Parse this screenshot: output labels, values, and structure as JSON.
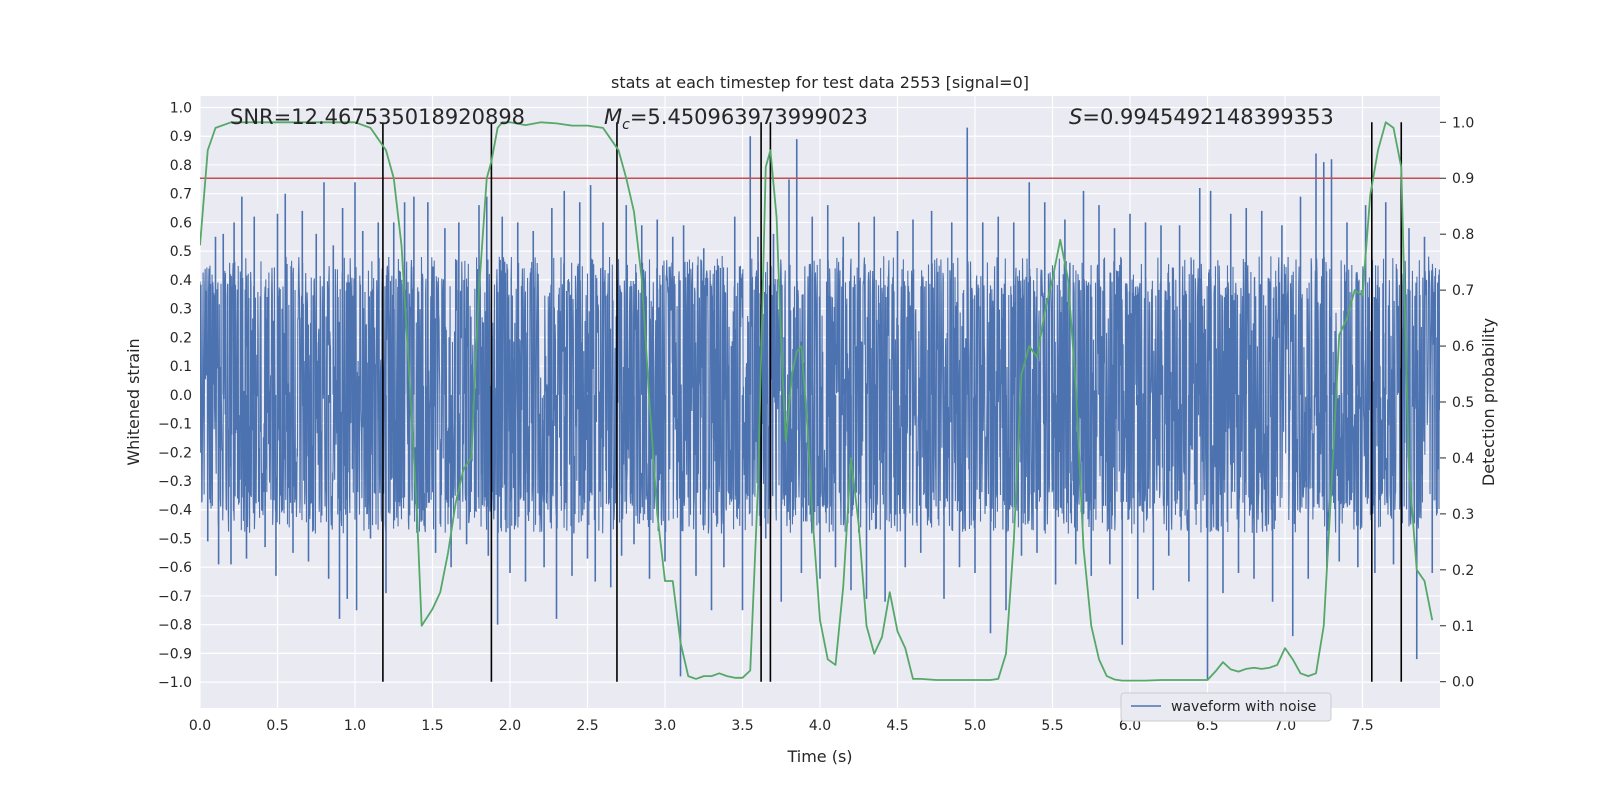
{
  "chart_data": {
    "type": "line",
    "title": "stats at each timestep for test data 2553 [signal=0]",
    "xlabel": "Time (s)",
    "ylabel": "Whitened strain",
    "y2label": "Detection probability",
    "xlim": [
      0.0,
      8.0
    ],
    "ylim": [
      -1.09,
      1.04
    ],
    "y2lim": [
      -0.047,
      1.047
    ],
    "x_ticks": [
      "0.0",
      "0.5",
      "1.0",
      "1.5",
      "2.0",
      "2.5",
      "3.0",
      "3.5",
      "4.0",
      "4.5",
      "5.0",
      "5.5",
      "6.0",
      "6.5",
      "7.0",
      "7.5"
    ],
    "y_ticks": [
      "1.0",
      "0.9",
      "0.8",
      "0.7",
      "0.6",
      "0.5",
      "0.4",
      "0.3",
      "0.2",
      "0.1",
      "0.0",
      "−0.1",
      "−0.2",
      "−0.3",
      "−0.4",
      "−0.5",
      "−0.6",
      "−0.7",
      "−0.8",
      "−0.9",
      "−1.0"
    ],
    "y2_ticks": [
      "1.0",
      "0.9",
      "0.8",
      "0.7",
      "0.6",
      "0.5",
      "0.4",
      "0.3",
      "0.2",
      "0.1",
      "0.0"
    ],
    "grid": true,
    "legend": {
      "placement": "lower-right",
      "entries": [
        "waveform with noise"
      ]
    },
    "annotations": {
      "snr": "SNR=12.467535018920898",
      "mc_symbol": "M",
      "mc_sub": "c",
      "mc_value": "=5.450963973999023",
      "s_symbol": "S",
      "s_value": "=0.9945492148399353"
    },
    "threshold": {
      "value": 0.9,
      "axis": "detection probability",
      "color": "#c44e52"
    },
    "vertical_markers": [
      1.18,
      1.88,
      2.69,
      3.62,
      3.68,
      7.56,
      7.75
    ],
    "series": [
      {
        "name": "waveform with noise",
        "kind": "noise",
        "color": "#4c72b0",
        "typical_range": [
          -0.42,
          0.42
        ],
        "spikes": [
          [
            0.05,
            -0.51
          ],
          [
            0.1,
            0.55
          ],
          [
            0.12,
            -0.59
          ],
          [
            0.15,
            0.56
          ],
          [
            0.2,
            -0.59
          ],
          [
            0.22,
            0.6
          ],
          [
            0.27,
            0.69
          ],
          [
            0.3,
            -0.57
          ],
          [
            0.35,
            0.62
          ],
          [
            0.42,
            -0.53
          ],
          [
            0.49,
            -0.63
          ],
          [
            0.5,
            0.63
          ],
          [
            0.55,
            0.7
          ],
          [
            0.6,
            -0.55
          ],
          [
            0.66,
            0.64
          ],
          [
            0.7,
            -0.58
          ],
          [
            0.75,
            0.56
          ],
          [
            0.8,
            0.74
          ],
          [
            0.83,
            -0.64
          ],
          [
            0.86,
            0.52
          ],
          [
            0.9,
            -0.78
          ],
          [
            0.92,
            0.65
          ],
          [
            0.95,
            -0.71
          ],
          [
            1.0,
            0.74
          ],
          [
            1.01,
            -0.75
          ],
          [
            1.05,
            0.57
          ],
          [
            1.1,
            -0.5
          ],
          [
            1.15,
            0.6
          ],
          [
            1.2,
            -0.69
          ],
          [
            1.25,
            0.6
          ],
          [
            1.32,
            0.67
          ],
          [
            1.38,
            0.69
          ],
          [
            1.4,
            -0.48
          ],
          [
            1.47,
            0.67
          ],
          [
            1.52,
            -0.55
          ],
          [
            1.58,
            0.58
          ],
          [
            1.62,
            -0.6
          ],
          [
            1.67,
            0.6
          ],
          [
            1.72,
            -0.52
          ],
          [
            1.8,
            0.66
          ],
          [
            1.85,
            0.69
          ],
          [
            1.86,
            -0.56
          ],
          [
            1.92,
            -0.8
          ],
          [
            1.95,
            0.62
          ],
          [
            2.0,
            -0.62
          ],
          [
            2.05,
            0.6
          ],
          [
            2.1,
            -0.65
          ],
          [
            2.15,
            0.57
          ],
          [
            2.22,
            -0.6
          ],
          [
            2.27,
            0.65
          ],
          [
            2.3,
            -0.78
          ],
          [
            2.35,
            0.71
          ],
          [
            2.4,
            -0.63
          ],
          [
            2.45,
            0.67
          ],
          [
            2.5,
            -0.57
          ],
          [
            2.52,
            0.73
          ],
          [
            2.55,
            -0.65
          ],
          [
            2.6,
            0.6
          ],
          [
            2.65,
            -0.67
          ],
          [
            2.72,
            -0.56
          ],
          [
            2.75,
            0.66
          ],
          [
            2.8,
            -0.52
          ],
          [
            2.85,
            0.59
          ],
          [
            2.9,
            -0.64
          ],
          [
            2.95,
            0.61
          ],
          [
            3.0,
            -0.58
          ],
          [
            3.05,
            0.55
          ],
          [
            3.1,
            -0.98
          ],
          [
            3.12,
            0.59
          ],
          [
            3.2,
            -0.63
          ],
          [
            3.25,
            0.51
          ],
          [
            3.3,
            -0.75
          ],
          [
            3.38,
            -0.6
          ],
          [
            3.45,
            0.62
          ],
          [
            3.5,
            -0.75
          ],
          [
            3.55,
            0.9
          ],
          [
            3.6,
            0.55
          ],
          [
            3.65,
            -0.5
          ],
          [
            3.7,
            0.56
          ],
          [
            3.75,
            -0.72
          ],
          [
            3.8,
            0.75
          ],
          [
            3.85,
            0.89
          ],
          [
            3.88,
            -0.62
          ],
          [
            3.95,
            0.62
          ],
          [
            4.0,
            -0.64
          ],
          [
            4.05,
            0.66
          ],
          [
            4.1,
            -0.6
          ],
          [
            4.15,
            0.55
          ],
          [
            4.2,
            -0.68
          ],
          [
            4.25,
            0.6
          ],
          [
            4.3,
            -0.71
          ],
          [
            4.35,
            0.62
          ],
          [
            4.42,
            -0.72
          ],
          [
            4.5,
            0.57
          ],
          [
            4.55,
            -0.6
          ],
          [
            4.6,
            0.61
          ],
          [
            4.65,
            -0.55
          ],
          [
            4.72,
            0.64
          ],
          [
            4.8,
            -0.71
          ],
          [
            4.85,
            0.6
          ],
          [
            4.9,
            -0.6
          ],
          [
            4.95,
            0.93
          ],
          [
            5.0,
            -0.62
          ],
          [
            5.05,
            0.6
          ],
          [
            5.1,
            -0.83
          ],
          [
            5.15,
            0.62
          ],
          [
            5.2,
            -0.75
          ],
          [
            5.25,
            0.6
          ],
          [
            5.3,
            -0.56
          ],
          [
            5.35,
            0.74
          ],
          [
            5.4,
            -0.55
          ],
          [
            5.45,
            0.67
          ],
          [
            5.52,
            -0.66
          ],
          [
            5.58,
            0.61
          ],
          [
            5.65,
            -0.59
          ],
          [
            5.7,
            0.71
          ],
          [
            5.75,
            -0.63
          ],
          [
            5.8,
            0.66
          ],
          [
            5.87,
            -0.59
          ],
          [
            5.9,
            0.58
          ],
          [
            5.95,
            -0.87
          ],
          [
            6.0,
            0.63
          ],
          [
            6.05,
            -0.71
          ],
          [
            6.1,
            0.6
          ],
          [
            6.15,
            -0.68
          ],
          [
            6.2,
            0.59
          ],
          [
            6.25,
            -0.56
          ],
          [
            6.32,
            0.59
          ],
          [
            6.38,
            -0.65
          ],
          [
            6.45,
            0.72
          ],
          [
            6.5,
            -0.99
          ],
          [
            6.52,
            0.71
          ],
          [
            6.6,
            -0.69
          ],
          [
            6.65,
            0.63
          ],
          [
            6.7,
            -0.62
          ],
          [
            6.75,
            0.65
          ],
          [
            6.8,
            -0.64
          ],
          [
            6.85,
            0.64
          ],
          [
            6.92,
            -0.72
          ],
          [
            6.98,
            0.59
          ],
          [
            7.05,
            -0.84
          ],
          [
            7.1,
            0.69
          ],
          [
            7.15,
            -0.64
          ],
          [
            7.2,
            0.84
          ],
          [
            7.25,
            0.81
          ],
          [
            7.27,
            -0.6
          ],
          [
            7.3,
            0.82
          ],
          [
            7.35,
            -0.58
          ],
          [
            7.4,
            0.6
          ],
          [
            7.47,
            -0.6
          ],
          [
            7.52,
            0.66
          ],
          [
            7.58,
            -0.62
          ],
          [
            7.65,
            0.67
          ],
          [
            7.7,
            -0.59
          ],
          [
            7.75,
            0.6
          ],
          [
            7.8,
            0.58
          ],
          [
            7.85,
            -0.92
          ],
          [
            7.9,
            0.55
          ],
          [
            7.95,
            -0.62
          ]
        ]
      },
      {
        "name": "detection probability",
        "kind": "line",
        "axis": "right",
        "color": "#55a868",
        "x": [
          0.0,
          0.05,
          0.1,
          0.2,
          0.3,
          0.5,
          0.7,
          0.9,
          1.0,
          1.05,
          1.1,
          1.15,
          1.2,
          1.25,
          1.3,
          1.35,
          1.4,
          1.43,
          1.5,
          1.55,
          1.6,
          1.65,
          1.7,
          1.75,
          1.8,
          1.85,
          1.88,
          1.92,
          1.95,
          2.0,
          2.1,
          2.2,
          2.3,
          2.4,
          2.5,
          2.6,
          2.65,
          2.7,
          2.75,
          2.8,
          2.85,
          2.9,
          2.95,
          3.0,
          3.05,
          3.1,
          3.15,
          3.2,
          3.25,
          3.3,
          3.35,
          3.4,
          3.45,
          3.5,
          3.55,
          3.6,
          3.65,
          3.68,
          3.72,
          3.75,
          3.78,
          3.82,
          3.85,
          3.88,
          3.92,
          3.95,
          4.0,
          4.05,
          4.1,
          4.15,
          4.2,
          4.25,
          4.3,
          4.35,
          4.4,
          4.45,
          4.5,
          4.55,
          4.6,
          4.65,
          4.75,
          4.9,
          5.0,
          5.1,
          5.15,
          5.2,
          5.25,
          5.3,
          5.35,
          5.4,
          5.45,
          5.5,
          5.55,
          5.6,
          5.65,
          5.7,
          5.75,
          5.8,
          5.85,
          5.9,
          5.95,
          6.0,
          6.1,
          6.2,
          6.3,
          6.4,
          6.5,
          6.55,
          6.6,
          6.65,
          6.7,
          6.75,
          6.8,
          6.85,
          6.9,
          6.95,
          7.0,
          7.05,
          7.1,
          7.15,
          7.2,
          7.25,
          7.3,
          7.35,
          7.4,
          7.45,
          7.5,
          7.55,
          7.6,
          7.65,
          7.7,
          7.75,
          7.8,
          7.85,
          7.9,
          7.95
        ],
        "y": [
          0.78,
          0.95,
          0.99,
          1.0,
          1.0,
          1.0,
          1.0,
          1.0,
          1.0,
          0.995,
          0.99,
          0.97,
          0.95,
          0.9,
          0.78,
          0.55,
          0.3,
          0.1,
          0.13,
          0.16,
          0.23,
          0.32,
          0.38,
          0.4,
          0.7,
          0.9,
          0.93,
          0.99,
          1.0,
          1.0,
          0.995,
          1.0,
          0.998,
          0.994,
          0.994,
          0.99,
          0.97,
          0.95,
          0.9,
          0.84,
          0.72,
          0.5,
          0.3,
          0.18,
          0.18,
          0.07,
          0.01,
          0.005,
          0.01,
          0.01,
          0.015,
          0.01,
          0.007,
          0.007,
          0.02,
          0.35,
          0.92,
          0.95,
          0.83,
          0.6,
          0.43,
          0.55,
          0.59,
          0.6,
          0.45,
          0.3,
          0.11,
          0.04,
          0.03,
          0.17,
          0.4,
          0.28,
          0.1,
          0.05,
          0.08,
          0.16,
          0.09,
          0.06,
          0.005,
          0.005,
          0.003,
          0.003,
          0.003,
          0.003,
          0.005,
          0.05,
          0.25,
          0.55,
          0.6,
          0.58,
          0.66,
          0.72,
          0.79,
          0.72,
          0.53,
          0.24,
          0.1,
          0.04,
          0.01,
          0.004,
          0.002,
          0.002,
          0.002,
          0.003,
          0.003,
          0.003,
          0.003,
          0.018,
          0.035,
          0.022,
          0.018,
          0.023,
          0.025,
          0.023,
          0.025,
          0.03,
          0.06,
          0.04,
          0.015,
          0.01,
          0.015,
          0.1,
          0.35,
          0.62,
          0.65,
          0.7,
          0.69,
          0.87,
          0.95,
          1.0,
          0.99,
          0.92,
          0.38,
          0.2,
          0.18,
          0.11
        ]
      }
    ]
  }
}
